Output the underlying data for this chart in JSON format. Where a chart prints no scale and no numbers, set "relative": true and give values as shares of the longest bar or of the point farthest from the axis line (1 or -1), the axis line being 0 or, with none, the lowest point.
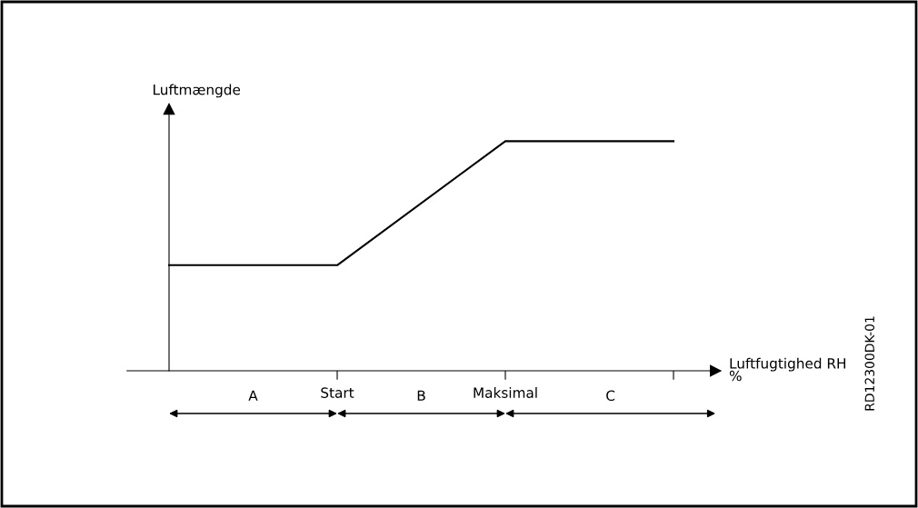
{
  "chart_data": {
    "type": "line",
    "relative": true,
    "categories": [
      null,
      "Start",
      "Maksimal",
      null
    ],
    "series": [
      {
        "color": "#000000",
        "values": [
          0.46,
          0.46,
          1,
          1
        ]
      }
    ],
    "xlabel": "Luftfugtighed RH\n%",
    "ylabel": "Luftmængde",
    "annotations": [
      "A",
      "B",
      "C",
      "RD12300DK-01"
    ],
    "legend": false,
    "marker": "none",
    "line_style": "solid"
  }
}
